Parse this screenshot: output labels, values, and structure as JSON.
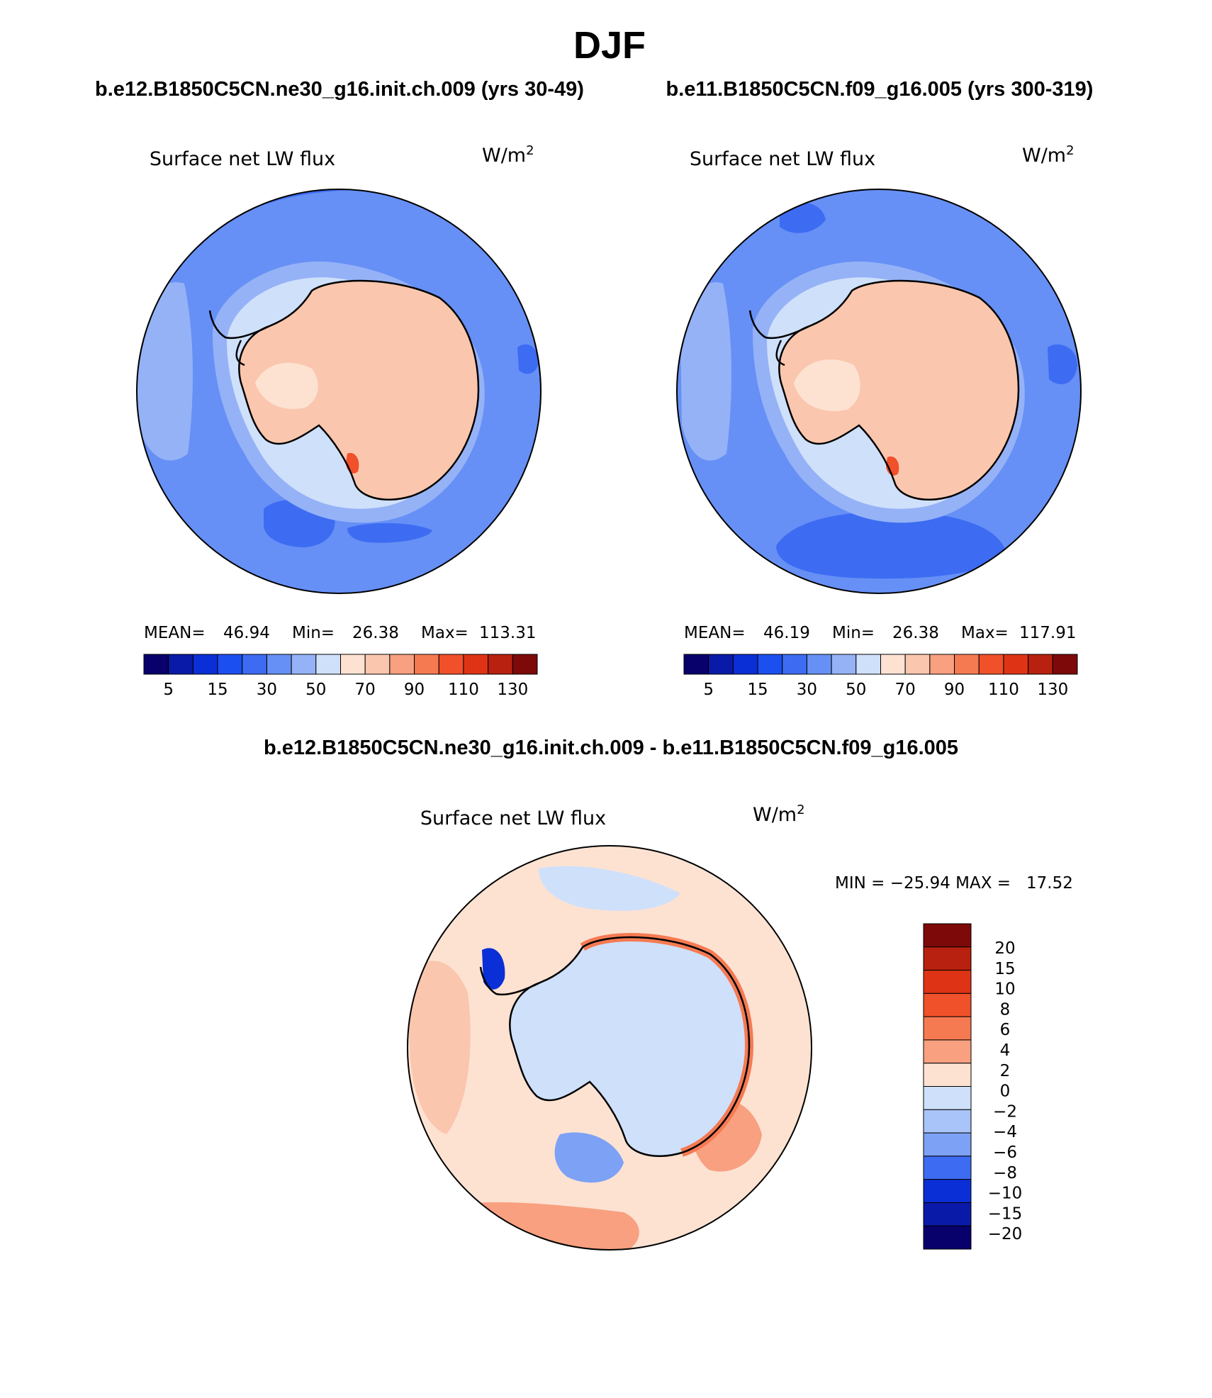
{
  "title": "DJF",
  "panels": [
    {
      "case_title": "b.e12.B1850C5CN.ne30_g16.init.ch.009 (yrs 30-49)",
      "variable": "Surface net LW flux",
      "units_base": "W/m",
      "units_exp": "2",
      "stats": {
        "mean_label": "MEAN=",
        "mean": "46.94",
        "min_label": "Min=",
        "min": "26.38",
        "max_label": "Max=",
        "max": "113.31"
      }
    },
    {
      "case_title": "b.e11.B1850C5CN.f09_g16.005 (yrs 300-319)",
      "variable": "Surface net LW flux",
      "units_base": "W/m",
      "units_exp": "2",
      "stats": {
        "mean_label": "MEAN=",
        "mean": "46.19",
        "min_label": "Min=",
        "min": "26.38",
        "max_label": "Max=",
        "max": "117.91"
      }
    }
  ],
  "diff_panel": {
    "title": "b.e12.B1850C5CN.ne30_g16.init.ch.009 - b.e11.B1850C5CN.f09_g16.005",
    "variable": "Surface net LW flux",
    "units_base": "W/m",
    "units_exp": "2",
    "minmax": "MIN = −25.94 MAX =   17.52"
  },
  "abs_colorbar": {
    "colors": [
      "#08006b",
      "#0a1aa8",
      "#0a2fd6",
      "#1c4ff0",
      "#3d6cf2",
      "#6690f5",
      "#95b2f7",
      "#cfe0fb",
      "#fde2d2",
      "#fbc6ae",
      "#f8a080",
      "#f57a52",
      "#f0502a",
      "#de3415",
      "#b8210f",
      "#7d0a08"
    ],
    "labels": [
      "5",
      "15",
      "30",
      "50",
      "70",
      "90",
      "110",
      "130"
    ]
  },
  "diff_colorbar": {
    "colors": [
      "#7d0a08",
      "#b8210f",
      "#de3415",
      "#f0502a",
      "#f57a52",
      "#f8a080",
      "#fde2d2",
      "#cfe0fb",
      "#a9c4f8",
      "#7da2f5",
      "#3d6cf2",
      "#0a2fd6",
      "#0a1aa8",
      "#08006b"
    ],
    "labels": [
      "20",
      "15",
      "10",
      "8",
      "6",
      "4",
      "2",
      "0",
      "−2",
      "−4",
      "−6",
      "−8",
      "−10",
      "−15",
      "−20"
    ]
  }
}
